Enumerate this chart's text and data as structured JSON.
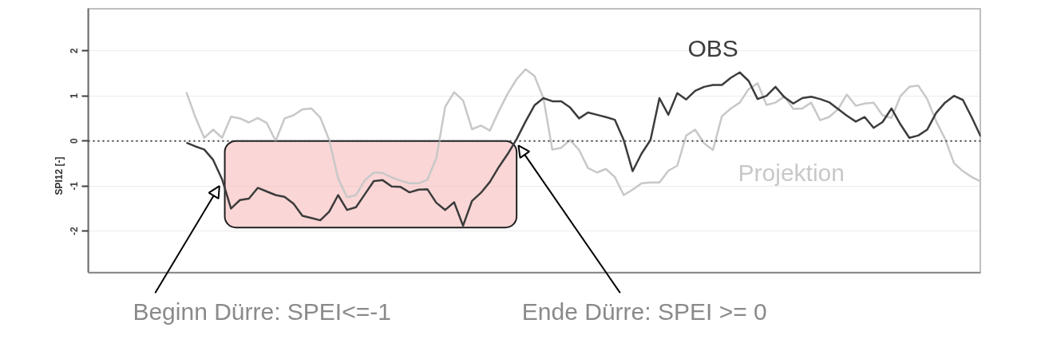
{
  "chart_data": {
    "type": "line",
    "ylabel": "SPI12 [-]",
    "categories": [
      null,
      null,
      null,
      null,
      null,
      null,
      null,
      null,
      null,
      null,
      null,
      null,
      null,
      null,
      null,
      null,
      null,
      null,
      null,
      null,
      null,
      null,
      null,
      null,
      null,
      null,
      null,
      null,
      null,
      null,
      null,
      null,
      null,
      null,
      null,
      null,
      null,
      null,
      null,
      null,
      null,
      null,
      null,
      null,
      null,
      null,
      null,
      null,
      null,
      null,
      null,
      null,
      null,
      null,
      null,
      null,
      null,
      null,
      null,
      null,
      null,
      null,
      null,
      null,
      null,
      null,
      null,
      null,
      null,
      null,
      null,
      null,
      null,
      null,
      null,
      null,
      null,
      null,
      null,
      null,
      null,
      null,
      null,
      null,
      null,
      null,
      null,
      null,
      null,
      null,
      null,
      null,
      null,
      null,
      null,
      null,
      null,
      null,
      null,
      null,
      null
    ],
    "series": [
      {
        "name": "Projektion",
        "color": "#c8c8c8",
        "values": [
          null,
          null,
          null,
          null,
          null,
          null,
          null,
          null,
          null,
          null,
          null,
          1.08,
          0.53,
          0.07,
          0.25,
          0.07,
          0.54,
          0.5,
          0.41,
          0.51,
          0.4,
          0,
          0.5,
          0.57,
          0.7,
          0.72,
          0.52,
          0.02,
          -0.83,
          -1.25,
          -1.2,
          -0.87,
          -0.7,
          -0.71,
          -0.81,
          -0.88,
          -0.94,
          -0.94,
          -0.86,
          -0.38,
          0.76,
          1.08,
          0.9,
          0.26,
          0.34,
          0.23,
          0.66,
          1.05,
          1.37,
          1.59,
          1.44,
          0.95,
          -0.19,
          -0.15,
          0.02,
          -0.2,
          -0.6,
          -0.7,
          -0.62,
          -0.8,
          -1.2,
          -1.08,
          -0.94,
          -0.92,
          -0.92,
          -0.66,
          -0.55,
          0.12,
          0.25,
          -0.05,
          -0.2,
          0.55,
          0.72,
          0.85,
          1.15,
          1.28,
          0.8,
          0.85,
          0.99,
          0.71,
          0.72,
          0.85,
          0.46,
          0.53,
          0.7,
          1.03,
          0.78,
          0.83,
          0.85,
          0.57,
          0.51,
          0.99,
          1.2,
          1.23,
          0.93,
          0.44,
          0.05,
          -0.49,
          -0.67,
          -0.8,
          -0.9
        ]
      },
      {
        "name": "OBS",
        "color": "#3c3c3c",
        "values": [
          null,
          null,
          null,
          null,
          null,
          null,
          null,
          null,
          null,
          null,
          null,
          -0.04,
          -0.12,
          -0.19,
          -0.42,
          -0.85,
          -1.5,
          -1.31,
          -1.28,
          -1.04,
          -1.12,
          -1.2,
          -1.24,
          -1.39,
          -1.66,
          -1.71,
          -1.76,
          -1.57,
          -1.2,
          -1.53,
          -1.47,
          -1.18,
          -0.89,
          -0.87,
          -1.01,
          -1.02,
          -1.14,
          -1.08,
          -1.07,
          -1.37,
          -1.53,
          -1.36,
          -1.88,
          -1.33,
          -1.15,
          -0.91,
          -0.58,
          -0.29,
          0.04,
          0.43,
          0.79,
          0.95,
          0.88,
          0.88,
          0.74,
          0.5,
          0.63,
          0.58,
          0.53,
          0.47,
          0.02,
          -0.67,
          -0.28,
          0.02,
          0.95,
          0.58,
          1.06,
          0.92,
          1.11,
          1.2,
          1.24,
          1.24,
          1.4,
          1.52,
          1.33,
          0.93,
          1.0,
          1.2,
          0.97,
          0.83,
          0.95,
          0.98,
          0.93,
          0.86,
          0.71,
          0.56,
          0.43,
          0.53,
          0.29,
          0.42,
          0.72,
          0.37,
          0.07,
          0.12,
          0.25,
          0.62,
          0.85,
          1.0,
          0.91,
          0.52,
          0.1
        ]
      }
    ],
    "ylim": [
      -2.92,
      2.94
    ],
    "yticks": [
      -2,
      -1,
      0,
      1,
      2
    ],
    "grid": "y",
    "tick_labels": "y",
    "marker": "none",
    "line_style": "solid",
    "bands": [
      {
        "axis": "y",
        "from": -1.92,
        "to": 0,
        "label": null,
        "color": "#f7b5b5"
      }
    ],
    "ref_lines": [
      {
        "axis": "y",
        "value": 0,
        "label": null,
        "color": "#404040",
        "line_style": "dotted"
      }
    ],
    "annotations": [
      "Beginn Dürre: SPEI<=-1",
      "Ende Dürre: SPEI >= 0"
    ]
  }
}
